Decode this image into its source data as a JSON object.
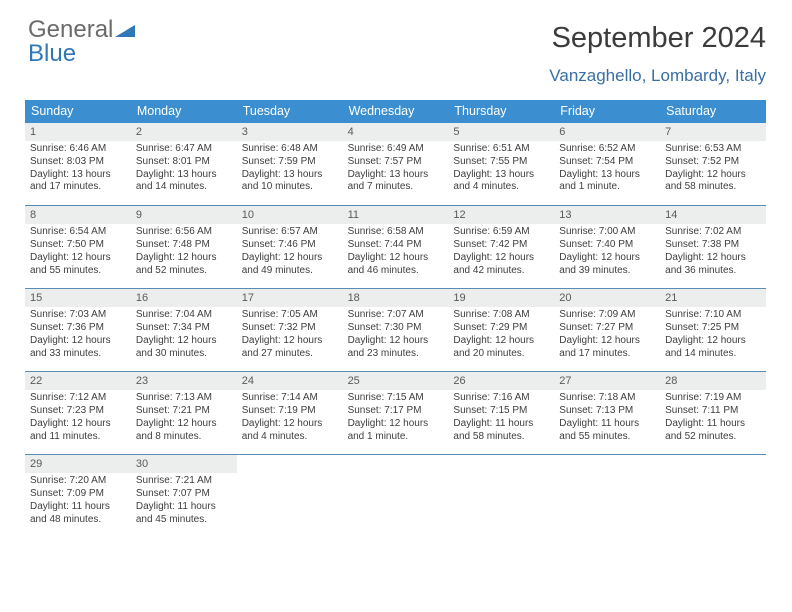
{
  "logo_part1": "General",
  "logo_part2": "Blue",
  "month_title": "September 2024",
  "location": "Vanzaghello, Lombardy, Italy",
  "day_headers": [
    "Sunday",
    "Monday",
    "Tuesday",
    "Wednesday",
    "Thursday",
    "Friday",
    "Saturday"
  ],
  "colors": {
    "header_bg": "#3b8fd0",
    "header_fg": "#ffffff",
    "daynum_bg": "#eceded",
    "row_border": "#5a8cb5",
    "logo_grey": "#6b6b6b",
    "logo_blue": "#2f78b5",
    "location_fg": "#3a6fa3"
  },
  "weeks": [
    [
      {
        "num": "1",
        "sunrise": "Sunrise: 6:46 AM",
        "sunset": "Sunset: 8:03 PM",
        "day1": "Daylight: 13 hours",
        "day2": "and 17 minutes."
      },
      {
        "num": "2",
        "sunrise": "Sunrise: 6:47 AM",
        "sunset": "Sunset: 8:01 PM",
        "day1": "Daylight: 13 hours",
        "day2": "and 14 minutes."
      },
      {
        "num": "3",
        "sunrise": "Sunrise: 6:48 AM",
        "sunset": "Sunset: 7:59 PM",
        "day1": "Daylight: 13 hours",
        "day2": "and 10 minutes."
      },
      {
        "num": "4",
        "sunrise": "Sunrise: 6:49 AM",
        "sunset": "Sunset: 7:57 PM",
        "day1": "Daylight: 13 hours",
        "day2": "and 7 minutes."
      },
      {
        "num": "5",
        "sunrise": "Sunrise: 6:51 AM",
        "sunset": "Sunset: 7:55 PM",
        "day1": "Daylight: 13 hours",
        "day2": "and 4 minutes."
      },
      {
        "num": "6",
        "sunrise": "Sunrise: 6:52 AM",
        "sunset": "Sunset: 7:54 PM",
        "day1": "Daylight: 13 hours",
        "day2": "and 1 minute."
      },
      {
        "num": "7",
        "sunrise": "Sunrise: 6:53 AM",
        "sunset": "Sunset: 7:52 PM",
        "day1": "Daylight: 12 hours",
        "day2": "and 58 minutes."
      }
    ],
    [
      {
        "num": "8",
        "sunrise": "Sunrise: 6:54 AM",
        "sunset": "Sunset: 7:50 PM",
        "day1": "Daylight: 12 hours",
        "day2": "and 55 minutes."
      },
      {
        "num": "9",
        "sunrise": "Sunrise: 6:56 AM",
        "sunset": "Sunset: 7:48 PM",
        "day1": "Daylight: 12 hours",
        "day2": "and 52 minutes."
      },
      {
        "num": "10",
        "sunrise": "Sunrise: 6:57 AM",
        "sunset": "Sunset: 7:46 PM",
        "day1": "Daylight: 12 hours",
        "day2": "and 49 minutes."
      },
      {
        "num": "11",
        "sunrise": "Sunrise: 6:58 AM",
        "sunset": "Sunset: 7:44 PM",
        "day1": "Daylight: 12 hours",
        "day2": "and 46 minutes."
      },
      {
        "num": "12",
        "sunrise": "Sunrise: 6:59 AM",
        "sunset": "Sunset: 7:42 PM",
        "day1": "Daylight: 12 hours",
        "day2": "and 42 minutes."
      },
      {
        "num": "13",
        "sunrise": "Sunrise: 7:00 AM",
        "sunset": "Sunset: 7:40 PM",
        "day1": "Daylight: 12 hours",
        "day2": "and 39 minutes."
      },
      {
        "num": "14",
        "sunrise": "Sunrise: 7:02 AM",
        "sunset": "Sunset: 7:38 PM",
        "day1": "Daylight: 12 hours",
        "day2": "and 36 minutes."
      }
    ],
    [
      {
        "num": "15",
        "sunrise": "Sunrise: 7:03 AM",
        "sunset": "Sunset: 7:36 PM",
        "day1": "Daylight: 12 hours",
        "day2": "and 33 minutes."
      },
      {
        "num": "16",
        "sunrise": "Sunrise: 7:04 AM",
        "sunset": "Sunset: 7:34 PM",
        "day1": "Daylight: 12 hours",
        "day2": "and 30 minutes."
      },
      {
        "num": "17",
        "sunrise": "Sunrise: 7:05 AM",
        "sunset": "Sunset: 7:32 PM",
        "day1": "Daylight: 12 hours",
        "day2": "and 27 minutes."
      },
      {
        "num": "18",
        "sunrise": "Sunrise: 7:07 AM",
        "sunset": "Sunset: 7:30 PM",
        "day1": "Daylight: 12 hours",
        "day2": "and 23 minutes."
      },
      {
        "num": "19",
        "sunrise": "Sunrise: 7:08 AM",
        "sunset": "Sunset: 7:29 PM",
        "day1": "Daylight: 12 hours",
        "day2": "and 20 minutes."
      },
      {
        "num": "20",
        "sunrise": "Sunrise: 7:09 AM",
        "sunset": "Sunset: 7:27 PM",
        "day1": "Daylight: 12 hours",
        "day2": "and 17 minutes."
      },
      {
        "num": "21",
        "sunrise": "Sunrise: 7:10 AM",
        "sunset": "Sunset: 7:25 PM",
        "day1": "Daylight: 12 hours",
        "day2": "and 14 minutes."
      }
    ],
    [
      {
        "num": "22",
        "sunrise": "Sunrise: 7:12 AM",
        "sunset": "Sunset: 7:23 PM",
        "day1": "Daylight: 12 hours",
        "day2": "and 11 minutes."
      },
      {
        "num": "23",
        "sunrise": "Sunrise: 7:13 AM",
        "sunset": "Sunset: 7:21 PM",
        "day1": "Daylight: 12 hours",
        "day2": "and 8 minutes."
      },
      {
        "num": "24",
        "sunrise": "Sunrise: 7:14 AM",
        "sunset": "Sunset: 7:19 PM",
        "day1": "Daylight: 12 hours",
        "day2": "and 4 minutes."
      },
      {
        "num": "25",
        "sunrise": "Sunrise: 7:15 AM",
        "sunset": "Sunset: 7:17 PM",
        "day1": "Daylight: 12 hours",
        "day2": "and 1 minute."
      },
      {
        "num": "26",
        "sunrise": "Sunrise: 7:16 AM",
        "sunset": "Sunset: 7:15 PM",
        "day1": "Daylight: 11 hours",
        "day2": "and 58 minutes."
      },
      {
        "num": "27",
        "sunrise": "Sunrise: 7:18 AM",
        "sunset": "Sunset: 7:13 PM",
        "day1": "Daylight: 11 hours",
        "day2": "and 55 minutes."
      },
      {
        "num": "28",
        "sunrise": "Sunrise: 7:19 AM",
        "sunset": "Sunset: 7:11 PM",
        "day1": "Daylight: 11 hours",
        "day2": "and 52 minutes."
      }
    ],
    [
      {
        "num": "29",
        "sunrise": "Sunrise: 7:20 AM",
        "sunset": "Sunset: 7:09 PM",
        "day1": "Daylight: 11 hours",
        "day2": "and 48 minutes."
      },
      {
        "num": "30",
        "sunrise": "Sunrise: 7:21 AM",
        "sunset": "Sunset: 7:07 PM",
        "day1": "Daylight: 11 hours",
        "day2": "and 45 minutes."
      },
      {
        "empty": true,
        "num": "",
        "sunrise": "",
        "sunset": "",
        "day1": "",
        "day2": ""
      },
      {
        "empty": true,
        "num": "",
        "sunrise": "",
        "sunset": "",
        "day1": "",
        "day2": ""
      },
      {
        "empty": true,
        "num": "",
        "sunrise": "",
        "sunset": "",
        "day1": "",
        "day2": ""
      },
      {
        "empty": true,
        "num": "",
        "sunrise": "",
        "sunset": "",
        "day1": "",
        "day2": ""
      },
      {
        "empty": true,
        "num": "",
        "sunrise": "",
        "sunset": "",
        "day1": "",
        "day2": ""
      }
    ]
  ]
}
